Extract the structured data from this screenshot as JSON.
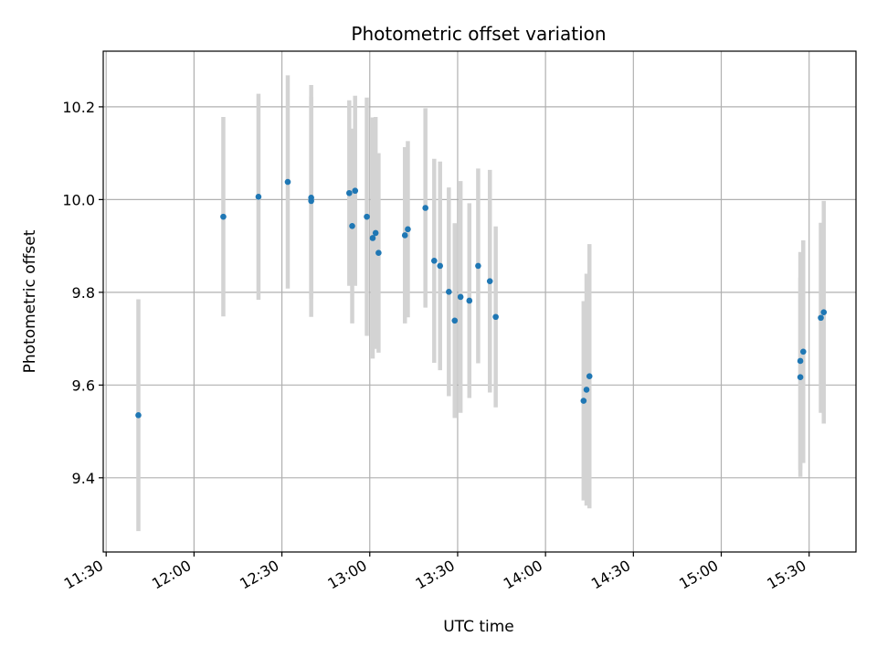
{
  "chart_data": {
    "type": "scatter",
    "title": "Photometric offset variation",
    "xlabel": "UTC time",
    "ylabel": "Photometric offset",
    "x_unit": "UTC time (HH:MM)",
    "xlim": [
      "11:29",
      "15:46"
    ],
    "ylim": [
      9.24,
      10.32
    ],
    "x_ticks": [
      "11:30",
      "12:00",
      "12:30",
      "13:00",
      "13:30",
      "14:00",
      "14:30",
      "15:00",
      "15:30"
    ],
    "y_ticks": [
      "9.4",
      "9.6",
      "9.8",
      "10.0",
      "10.2"
    ],
    "grid": true,
    "colors": {
      "point": "#1f77b4",
      "errorbar": "#d3d3d3",
      "grid": "#b0b0b0"
    },
    "series": [
      {
        "points": [
          {
            "x": "11:41",
            "y": 9.535,
            "err": 0.25
          },
          {
            "x": "12:10",
            "y": 9.963,
            "err": 0.215
          },
          {
            "x": "12:22",
            "y": 10.006,
            "err": 0.222
          },
          {
            "x": "12:32",
            "y": 10.038,
            "err": 0.23
          },
          {
            "x": "12:40",
            "y": 9.997,
            "err": 0.25
          },
          {
            "x": "12:40",
            "y": 10.004,
            "err": 0.218
          },
          {
            "x": "12:53",
            "y": 10.014,
            "err": 0.2
          },
          {
            "x": "12:54",
            "y": 9.943,
            "err": 0.21
          },
          {
            "x": "12:55",
            "y": 10.019,
            "err": 0.205
          },
          {
            "x": "12:59",
            "y": 9.963,
            "err": 0.257
          },
          {
            "x": "13:01",
            "y": 9.917,
            "err": 0.26
          },
          {
            "x": "13:02",
            "y": 9.928,
            "err": 0.25
          },
          {
            "x": "13:03",
            "y": 9.885,
            "err": 0.215
          },
          {
            "x": "13:12",
            "y": 9.923,
            "err": 0.19
          },
          {
            "x": "13:13",
            "y": 9.936,
            "err": 0.19
          },
          {
            "x": "13:19",
            "y": 9.982,
            "err": 0.215
          },
          {
            "x": "13:22",
            "y": 9.868,
            "err": 0.22
          },
          {
            "x": "13:24",
            "y": 9.857,
            "err": 0.225
          },
          {
            "x": "13:27",
            "y": 9.801,
            "err": 0.225
          },
          {
            "x": "13:29",
            "y": 9.739,
            "err": 0.21
          },
          {
            "x": "13:31",
            "y": 9.79,
            "err": 0.25
          },
          {
            "x": "13:34",
            "y": 9.782,
            "err": 0.21
          },
          {
            "x": "13:37",
            "y": 9.857,
            "err": 0.21
          },
          {
            "x": "13:41",
            "y": 9.824,
            "err": 0.24
          },
          {
            "x": "13:43",
            "y": 9.747,
            "err": 0.195
          },
          {
            "x": "14:13",
            "y": 9.566,
            "err": 0.215
          },
          {
            "x": "14:14",
            "y": 9.59,
            "err": 0.25
          },
          {
            "x": "14:15",
            "y": 9.619,
            "err": 0.285
          },
          {
            "x": "15:27",
            "y": 9.617,
            "err": 0.215
          },
          {
            "x": "15:27",
            "y": 9.652,
            "err": 0.235
          },
          {
            "x": "15:28",
            "y": 9.672,
            "err": 0.24
          },
          {
            "x": "15:34",
            "y": 9.745,
            "err": 0.205
          },
          {
            "x": "15:35",
            "y": 9.757,
            "err": 0.24
          }
        ]
      }
    ]
  }
}
